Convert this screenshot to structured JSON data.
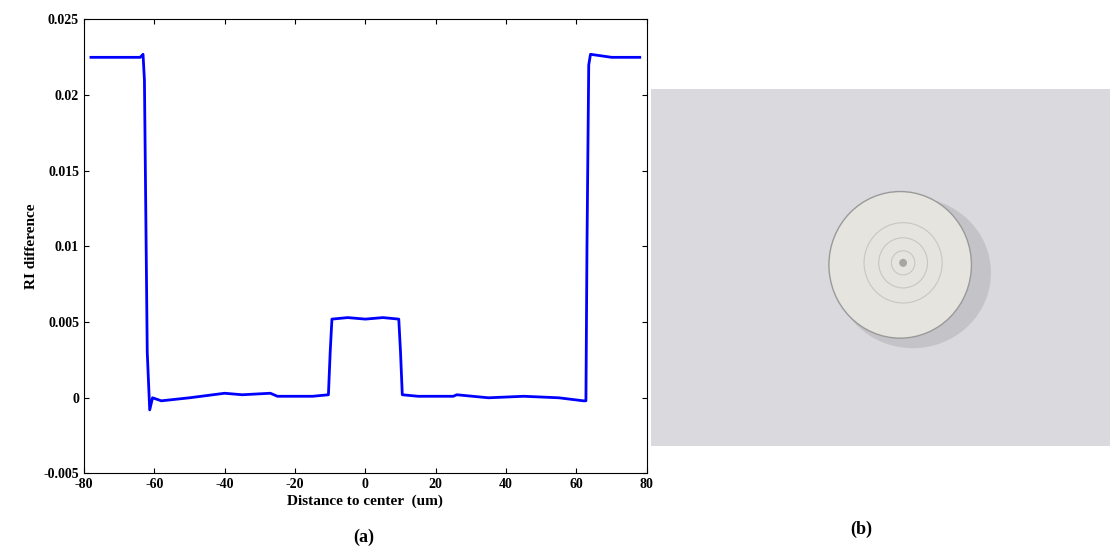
{
  "chart_data": {
    "type": "line",
    "x_label": "Distance to center  (um)",
    "y_label": "RI difference",
    "annotation": "(a)",
    "color": "#0000ff",
    "x": [
      -78,
      -70,
      -64,
      -63.2,
      -62.8,
      -62,
      -61.3,
      -60.5,
      -58,
      -50,
      -40,
      -35,
      -27,
      -25,
      -15,
      -10.5,
      -10,
      -9.5,
      -5,
      0,
      5,
      9.5,
      10,
      10.5,
      15,
      25,
      26,
      35,
      45,
      55,
      62,
      62.7,
      63,
      63.5,
      64,
      70,
      78
    ],
    "values": [
      0.0225,
      0.0225,
      0.0225,
      0.0227,
      0.021,
      0.003,
      -0.0008,
      0.0,
      -0.0002,
      0.0,
      0.0003,
      0.0002,
      0.0003,
      0.0001,
      0.0001,
      0.0002,
      0.003,
      0.0052,
      0.0053,
      0.0052,
      0.0053,
      0.0052,
      0.003,
      0.0002,
      0.0001,
      0.0001,
      0.0002,
      0.0,
      0.0001,
      0.0,
      -0.0002,
      -0.0002,
      0.01,
      0.022,
      0.0227,
      0.0225,
      0.0225
    ],
    "xlim": [
      -80,
      80
    ],
    "xticks": [
      -80,
      -60,
      -40,
      -20,
      0,
      20,
      40,
      60,
      80
    ],
    "ylim": [
      -0.005,
      0.025
    ],
    "yticks": [
      -0.005,
      0,
      0.005,
      0.01,
      0.015,
      0.02,
      0.025
    ],
    "grid": false
  },
  "photo": {
    "caption": "(b)"
  }
}
